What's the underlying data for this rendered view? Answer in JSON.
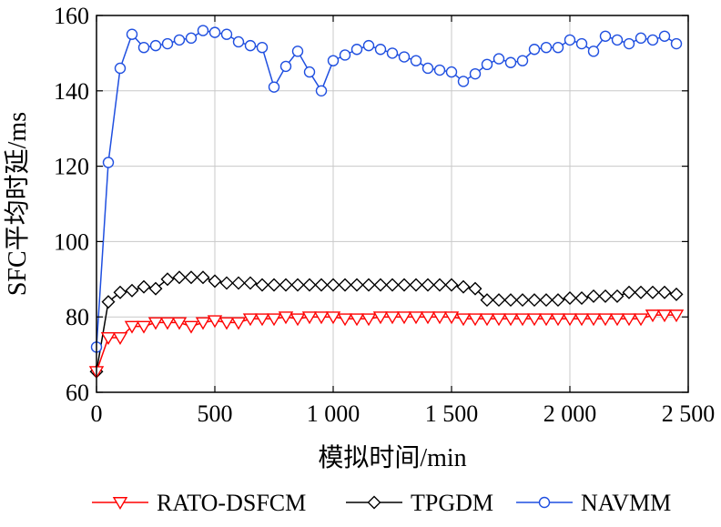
{
  "chart_data": {
    "type": "line",
    "title": "",
    "xlabel": "模拟时间/min",
    "ylabel": "SFC平均时延/ms",
    "xlim": [
      0,
      2500
    ],
    "ylim": [
      60,
      160
    ],
    "xticks": [
      0,
      500,
      1000,
      1500,
      2000,
      2500
    ],
    "xtick_labels": [
      "0",
      "500",
      "1 000",
      "1 500",
      "2 000",
      "2 500"
    ],
    "yticks": [
      60,
      80,
      100,
      120,
      140,
      160
    ],
    "ytick_labels": [
      "60",
      "80",
      "100",
      "120",
      "140",
      "160"
    ],
    "grid": true,
    "legend_position": "bottom",
    "x": [
      0,
      50,
      100,
      150,
      200,
      250,
      300,
      350,
      400,
      450,
      500,
      550,
      600,
      650,
      700,
      750,
      800,
      850,
      900,
      950,
      1000,
      1050,
      1100,
      1150,
      1200,
      1250,
      1300,
      1350,
      1400,
      1450,
      1500,
      1550,
      1600,
      1650,
      1700,
      1750,
      1800,
      1850,
      1900,
      1950,
      2000,
      2050,
      2100,
      2150,
      2200,
      2250,
      2300,
      2350,
      2400,
      2450
    ],
    "series": [
      {
        "name": "RATO-DSFCM",
        "color": "#ff0000",
        "marker": "triangle-down",
        "values": [
          65.5,
          74.5,
          74.5,
          77.5,
          77.5,
          78.5,
          78.5,
          78.5,
          77.5,
          78.5,
          79,
          78.5,
          78.5,
          79.5,
          79.5,
          79.5,
          80,
          79.5,
          80,
          80,
          80,
          79.5,
          79.5,
          79.5,
          80,
          80,
          80,
          80,
          80,
          80,
          80,
          79.5,
          79.5,
          79.5,
          79.5,
          79.5,
          79.5,
          79.5,
          79.5,
          79.5,
          79.5,
          79.5,
          79.5,
          79.5,
          79.5,
          79.5,
          79.5,
          80.5,
          80.5,
          80.5
        ]
      },
      {
        "name": "TPGDM",
        "color": "#000000",
        "marker": "diamond",
        "values": [
          65.5,
          84,
          86.5,
          87,
          88,
          87.5,
          90,
          90.5,
          90.5,
          90.5,
          89.5,
          89,
          89,
          89,
          88.5,
          88.5,
          88.5,
          88.5,
          88.5,
          88.5,
          88.5,
          88.5,
          88.5,
          88.5,
          88.5,
          88.5,
          88.5,
          88.5,
          88.5,
          88.5,
          88.5,
          88,
          87.5,
          84.5,
          84.5,
          84.5,
          84.5,
          84.5,
          84.5,
          84.5,
          85,
          85,
          85.5,
          85.5,
          85.5,
          86.5,
          86.5,
          86.5,
          86.5,
          86
        ]
      },
      {
        "name": "NAVMM",
        "color": "#1f4fe0",
        "marker": "circle",
        "values": [
          72,
          121,
          146,
          155,
          151.5,
          152,
          152.5,
          153.5,
          154,
          156,
          155.5,
          155,
          153,
          152,
          151.5,
          141,
          146.5,
          150.5,
          145,
          140,
          148,
          149.5,
          151,
          152,
          151,
          150,
          149,
          148,
          146,
          145.5,
          145,
          142.5,
          144.5,
          147,
          148.5,
          147.5,
          148,
          151,
          151.5,
          151.5,
          153.5,
          152.5,
          150.5,
          154.5,
          153.5,
          152.5,
          154,
          153.5,
          154.5,
          152.5
        ]
      }
    ]
  }
}
